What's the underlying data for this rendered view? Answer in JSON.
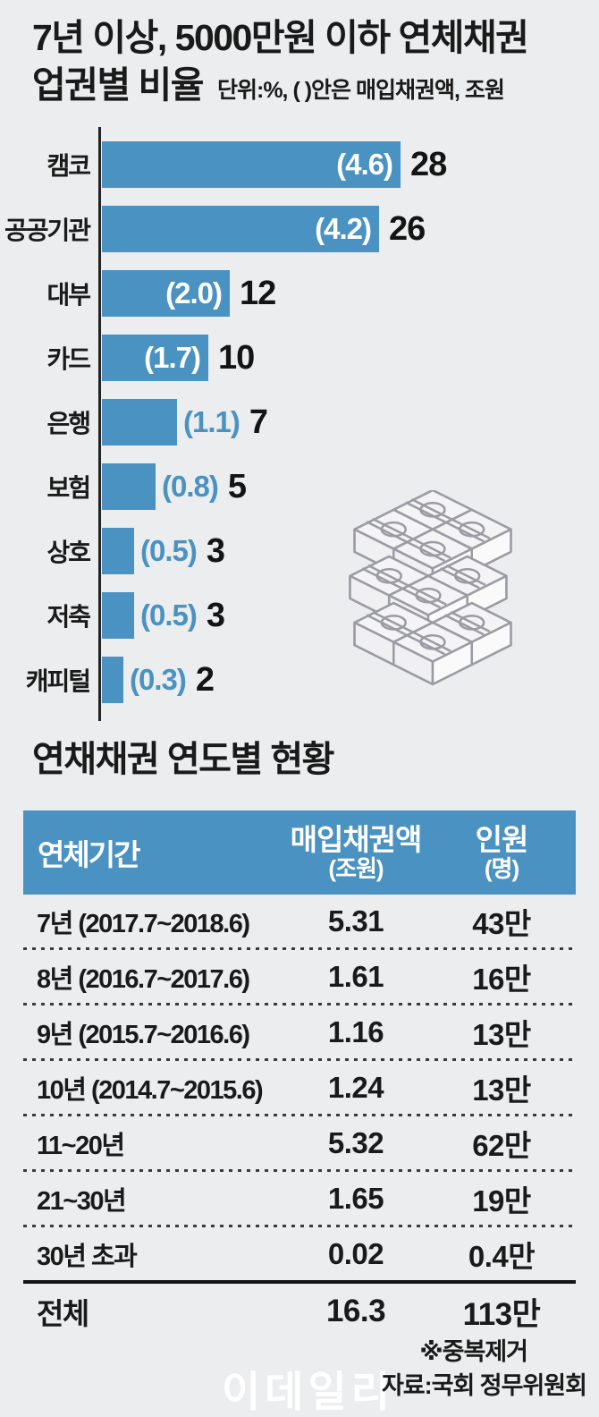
{
  "colors": {
    "background": "#ECEDEE",
    "accent_blue": "#4A92C2",
    "text_dark": "#1a1a1a",
    "white": "#ffffff",
    "illustration_outline": "#9B9BA3"
  },
  "branding": {
    "watermark": "이데일리"
  },
  "chart_data": [
    {
      "type": "bar",
      "orientation": "horizontal",
      "title_line1": "7년 이상, 5000만원 이하 연체채권",
      "title_line2": "업권별 비율",
      "unit_note": "단위:%, (  )안은 매입채권액, 조원",
      "categories": [
        "캠코",
        "공공기관",
        "대부",
        "카드",
        "은행",
        "보험",
        "상호",
        "저축",
        "캐피털"
      ],
      "values_percent": [
        28,
        26,
        12,
        10,
        7,
        5,
        3,
        3,
        2
      ],
      "purchase_amounts_trillion": [
        4.6,
        4.2,
        2.0,
        1.7,
        1.1,
        0.8,
        0.5,
        0.5,
        0.3
      ],
      "xlim": [
        0,
        28
      ],
      "grid": "off",
      "value_label_color": "#141414",
      "amount_label_inside_color": "#ffffff",
      "amount_label_outside_color": "#4A92C2"
    },
    {
      "type": "table",
      "title": "연채채권 연도별 현황",
      "columns": [
        {
          "label": "연체기간",
          "sub": ""
        },
        {
          "label": "매입채권액",
          "sub": "(조원)"
        },
        {
          "label": "인원",
          "sub": "(명)"
        }
      ],
      "rows": [
        {
          "label": "7년 (2017.7~2018.6)",
          "amount": "5.31",
          "people": "43만"
        },
        {
          "label": "8년 (2016.7~2017.6)",
          "amount": "1.61",
          "people": "16만"
        },
        {
          "label": "9년 (2015.7~2016.6)",
          "amount": "1.16",
          "people": "13만"
        },
        {
          "label": "10년 (2014.7~2015.6)",
          "amount": "1.24",
          "people": "13만"
        },
        {
          "label": "11~20년",
          "amount": "5.32",
          "people": "62만"
        },
        {
          "label": "21~30년",
          "amount": "1.65",
          "people": "19만"
        },
        {
          "label": "30년 초과",
          "amount": "0.02",
          "people": "0.4만"
        }
      ],
      "total": {
        "label": "전체",
        "amount": "16.3",
        "people": "113만"
      },
      "footnote": "※중복제거",
      "source": "자료:국회 정무위원회"
    }
  ]
}
